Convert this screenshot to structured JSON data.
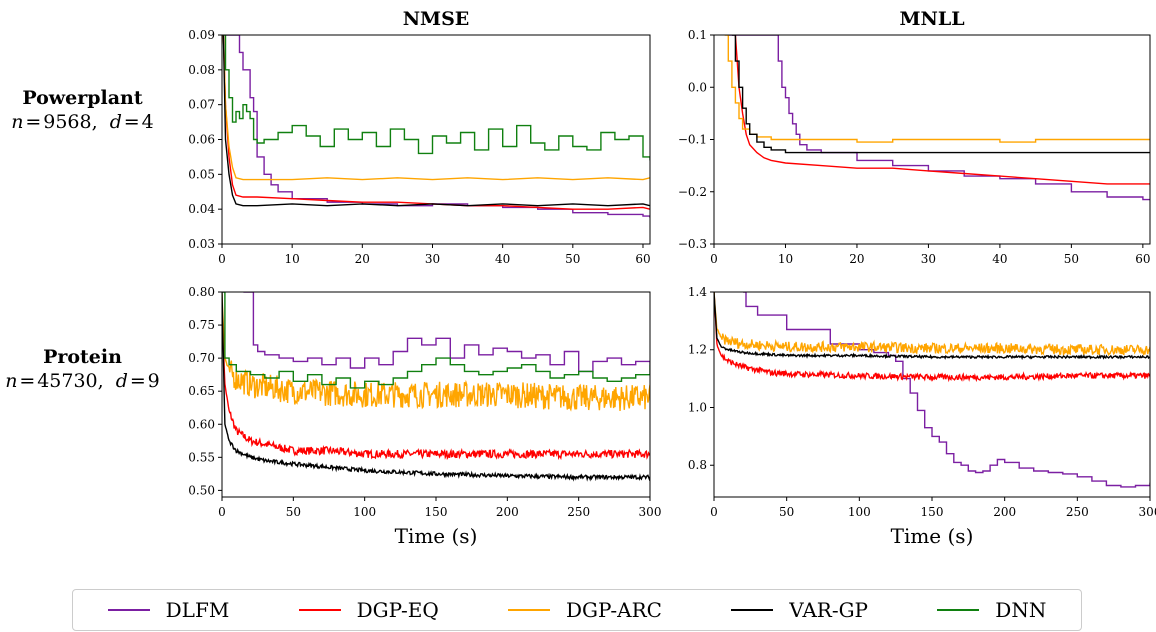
{
  "row_labels": [
    {
      "name": "Powerplant",
      "n": "9568",
      "d": "4"
    },
    {
      "name": "Protein",
      "n": "45730",
      "d": "9"
    }
  ],
  "legend": [
    {
      "label": "DLFM",
      "color": "#7b1fa2"
    },
    {
      "label": "DGP-EQ",
      "color": "#ff0000"
    },
    {
      "label": "DGP-ARC",
      "color": "#ffa500"
    },
    {
      "label": "VAR-GP",
      "color": "#000000"
    },
    {
      "label": "DNN",
      "color": "#108010"
    }
  ],
  "chart_data": [
    {
      "type": "line",
      "title": "NMSE",
      "xlabel": "",
      "xlim": [
        0,
        61
      ],
      "ylim": [
        0.03,
        0.09
      ],
      "xticks": [
        0,
        10,
        20,
        30,
        40,
        50,
        60
      ],
      "yticks": [
        0.03,
        0.04,
        0.05,
        0.06,
        0.07,
        0.08,
        0.09
      ],
      "ytick_labels": [
        "0.03",
        "0.04",
        "0.05",
        "0.06",
        "0.07",
        "0.08",
        "0.09"
      ],
      "series": [
        {
          "name": "DLFM",
          "color": "#7b1fa2",
          "x": [
            0.5,
            1.5,
            2.5,
            3,
            4,
            4.5,
            5,
            6,
            7,
            8,
            10,
            15,
            20,
            25,
            30,
            35,
            40,
            45,
            50,
            55,
            60,
            61
          ],
          "y": [
            0.09,
            0.09,
            0.085,
            0.08,
            0.072,
            0.068,
            0.055,
            0.05,
            0.047,
            0.045,
            0.043,
            0.042,
            0.0415,
            0.041,
            0.0415,
            0.041,
            0.0405,
            0.04,
            0.039,
            0.0385,
            0.038,
            0.0375
          ]
        },
        {
          "name": "DGP-EQ",
          "color": "#ff0000",
          "x": [
            0.2,
            0.5,
            1,
            1.5,
            2,
            3,
            5,
            10,
            15,
            20,
            25,
            30,
            35,
            40,
            45,
            50,
            55,
            60,
            61
          ],
          "y": [
            0.09,
            0.07,
            0.055,
            0.047,
            0.044,
            0.0435,
            0.0435,
            0.043,
            0.0425,
            0.042,
            0.042,
            0.0415,
            0.041,
            0.041,
            0.0405,
            0.04,
            0.04,
            0.0405,
            0.04
          ]
        },
        {
          "name": "DGP-ARC",
          "color": "#ffa500",
          "x": [
            0.2,
            0.5,
            1,
            1.5,
            2,
            3,
            5,
            10,
            15,
            20,
            25,
            30,
            35,
            40,
            45,
            50,
            55,
            60,
            61
          ],
          "y": [
            0.09,
            0.07,
            0.058,
            0.052,
            0.049,
            0.0485,
            0.0485,
            0.0485,
            0.049,
            0.0485,
            0.049,
            0.0485,
            0.049,
            0.0485,
            0.049,
            0.0485,
            0.049,
            0.0485,
            0.049
          ]
        },
        {
          "name": "VAR-GP",
          "color": "#000000",
          "x": [
            0.2,
            0.5,
            1,
            1.5,
            2,
            3,
            5,
            10,
            15,
            20,
            25,
            30,
            35,
            40,
            45,
            50,
            55,
            60,
            61
          ],
          "y": [
            0.09,
            0.06,
            0.05,
            0.044,
            0.0415,
            0.041,
            0.041,
            0.0415,
            0.041,
            0.0415,
            0.041,
            0.0415,
            0.041,
            0.0415,
            0.041,
            0.0415,
            0.041,
            0.0415,
            0.041
          ]
        },
        {
          "name": "DNN",
          "color": "#108010",
          "x": [
            0.2,
            0.5,
            1,
            1.5,
            2,
            2.5,
            3,
            3.5,
            4,
            4.5,
            5,
            6,
            8,
            10,
            12,
            14,
            16,
            18,
            20,
            22,
            24,
            26,
            28,
            30,
            32,
            34,
            36,
            38,
            40,
            42,
            44,
            46,
            48,
            50,
            52,
            54,
            56,
            58,
            60,
            61
          ],
          "y": [
            0.09,
            0.08,
            0.072,
            0.065,
            0.068,
            0.066,
            0.07,
            0.068,
            0.066,
            0.06,
            0.059,
            0.06,
            0.062,
            0.064,
            0.061,
            0.058,
            0.063,
            0.06,
            0.062,
            0.058,
            0.063,
            0.06,
            0.056,
            0.061,
            0.059,
            0.062,
            0.057,
            0.063,
            0.058,
            0.064,
            0.059,
            0.057,
            0.061,
            0.058,
            0.057,
            0.062,
            0.06,
            0.061,
            0.055,
            0.054
          ]
        }
      ]
    },
    {
      "type": "line",
      "title": "MNLL",
      "xlabel": "",
      "xlim": [
        0,
        61
      ],
      "ylim": [
        -0.3,
        0.1
      ],
      "xticks": [
        0,
        10,
        20,
        30,
        40,
        50,
        60
      ],
      "yticks": [
        -0.3,
        -0.2,
        -0.1,
        0.0,
        0.1
      ],
      "ytick_labels": [
        "−0.3",
        "−0.2",
        "−0.1",
        "0.0",
        "0.1"
      ],
      "series": [
        {
          "name": "DLFM",
          "color": "#7b1fa2",
          "x": [
            2,
            5,
            8,
            9,
            9.5,
            10,
            10.5,
            11,
            11.5,
            12,
            13,
            15,
            20,
            25,
            30,
            35,
            40,
            45,
            50,
            55,
            60,
            61
          ],
          "y": [
            0.1,
            0.1,
            0.1,
            0.05,
            0.0,
            -0.02,
            -0.05,
            -0.07,
            -0.09,
            -0.11,
            -0.12,
            -0.125,
            -0.14,
            -0.15,
            -0.16,
            -0.17,
            -0.175,
            -0.185,
            -0.2,
            -0.21,
            -0.215,
            -0.215
          ]
        },
        {
          "name": "DGP-EQ",
          "color": "#ff0000",
          "x": [
            3,
            3.5,
            4,
            4.5,
            5,
            6,
            7,
            8,
            10,
            15,
            20,
            25,
            30,
            35,
            40,
            45,
            50,
            55,
            60,
            61
          ],
          "y": [
            0.1,
            0.0,
            -0.05,
            -0.09,
            -0.11,
            -0.125,
            -0.135,
            -0.14,
            -0.145,
            -0.15,
            -0.155,
            -0.155,
            -0.16,
            -0.165,
            -0.17,
            -0.175,
            -0.18,
            -0.185,
            -0.185,
            -0.185
          ]
        },
        {
          "name": "DGP-ARC",
          "color": "#ffa500",
          "x": [
            1.5,
            2,
            2.5,
            3,
            3.5,
            4,
            5,
            6,
            8,
            10,
            15,
            20,
            25,
            30,
            35,
            40,
            45,
            50,
            55,
            60,
            61
          ],
          "y": [
            0.1,
            0.05,
            0.0,
            -0.03,
            -0.06,
            -0.08,
            -0.09,
            -0.095,
            -0.1,
            -0.1,
            -0.1,
            -0.105,
            -0.1,
            -0.1,
            -0.1,
            -0.105,
            -0.1,
            -0.1,
            -0.1,
            -0.1,
            -0.1
          ]
        },
        {
          "name": "VAR-GP",
          "color": "#000000",
          "x": [
            2.5,
            3,
            3.5,
            4,
            4.5,
            5,
            6,
            7,
            8,
            10,
            15,
            20,
            25,
            30,
            35,
            40,
            45,
            50,
            55,
            60,
            61
          ],
          "y": [
            0.1,
            0.05,
            0.0,
            -0.04,
            -0.07,
            -0.09,
            -0.105,
            -0.115,
            -0.12,
            -0.125,
            -0.125,
            -0.125,
            -0.125,
            -0.125,
            -0.125,
            -0.125,
            -0.125,
            -0.125,
            -0.125,
            -0.125,
            -0.125
          ]
        }
      ]
    },
    {
      "type": "line",
      "title": "",
      "xlabel": "Time (s)",
      "xlim": [
        0,
        300
      ],
      "ylim": [
        0.49,
        0.8
      ],
      "xticks": [
        0,
        50,
        100,
        150,
        200,
        250,
        300
      ],
      "yticks": [
        0.5,
        0.55,
        0.6,
        0.65,
        0.7,
        0.75,
        0.8
      ],
      "ytick_labels": [
        "0.50",
        "0.55",
        "0.60",
        "0.65",
        "0.70",
        "0.75",
        "0.80"
      ],
      "series": [
        {
          "name": "DLFM",
          "color": "#7b1fa2",
          "x": [
            15,
            20,
            22,
            25,
            30,
            40,
            50,
            60,
            70,
            80,
            90,
            100,
            110,
            120,
            130,
            140,
            150,
            160,
            170,
            180,
            190,
            200,
            210,
            220,
            230,
            240,
            250,
            260,
            270,
            280,
            290,
            300
          ],
          "y": [
            0.8,
            0.8,
            0.72,
            0.71,
            0.705,
            0.7,
            0.695,
            0.7,
            0.69,
            0.7,
            0.685,
            0.7,
            0.69,
            0.71,
            0.73,
            0.72,
            0.73,
            0.7,
            0.72,
            0.705,
            0.715,
            0.71,
            0.7,
            0.705,
            0.69,
            0.71,
            0.68,
            0.695,
            0.7,
            0.69,
            0.695,
            0.69
          ]
        },
        {
          "name": "DGP-EQ",
          "color": "#ff0000",
          "noise": 0.006,
          "x": [
            0,
            2,
            5,
            10,
            20,
            30,
            50,
            75,
            100,
            150,
            200,
            250,
            300
          ],
          "y": [
            0.78,
            0.66,
            0.62,
            0.59,
            0.575,
            0.57,
            0.56,
            0.56,
            0.555,
            0.555,
            0.555,
            0.555,
            0.555
          ]
        },
        {
          "name": "DGP-ARC",
          "color": "#ffa500",
          "noise": 0.02,
          "x": [
            0,
            2,
            5,
            10,
            20,
            50,
            100,
            150,
            200,
            250,
            300
          ],
          "y": [
            0.8,
            0.7,
            0.68,
            0.67,
            0.66,
            0.65,
            0.645,
            0.645,
            0.645,
            0.64,
            0.64
          ]
        },
        {
          "name": "VAR-GP",
          "color": "#000000",
          "noise": 0.003,
          "x": [
            0,
            2,
            5,
            10,
            20,
            30,
            50,
            75,
            100,
            150,
            200,
            250,
            300
          ],
          "y": [
            0.8,
            0.6,
            0.575,
            0.56,
            0.55,
            0.545,
            0.54,
            0.535,
            0.53,
            0.525,
            0.522,
            0.52,
            0.52
          ]
        },
        {
          "name": "DNN",
          "color": "#108010",
          "x": [
            0,
            2,
            5,
            10,
            20,
            30,
            40,
            50,
            60,
            70,
            80,
            90,
            100,
            110,
            120,
            130,
            140,
            150,
            160,
            170,
            180,
            190,
            200,
            210,
            220,
            230,
            240,
            250,
            260,
            270,
            280,
            290,
            300
          ],
          "y": [
            0.8,
            0.7,
            0.69,
            0.68,
            0.675,
            0.67,
            0.68,
            0.665,
            0.675,
            0.66,
            0.67,
            0.655,
            0.665,
            0.66,
            0.67,
            0.68,
            0.69,
            0.7,
            0.69,
            0.68,
            0.675,
            0.68,
            0.685,
            0.69,
            0.68,
            0.67,
            0.675,
            0.68,
            0.67,
            0.665,
            0.67,
            0.675,
            0.69
          ]
        }
      ]
    },
    {
      "type": "line",
      "title": "",
      "xlabel": "Time (s)",
      "xlim": [
        0,
        300
      ],
      "ylim": [
        0.69,
        1.4
      ],
      "xticks": [
        0,
        50,
        100,
        150,
        200,
        250,
        300
      ],
      "yticks": [
        0.8,
        1.0,
        1.2,
        1.4
      ],
      "ytick_labels": [
        "0.8",
        "1.0",
        "1.2",
        "1.4"
      ],
      "series": [
        {
          "name": "DLFM",
          "color": "#7b1fa2",
          "x": [
            20,
            22,
            30,
            50,
            80,
            100,
            110,
            120,
            125,
            130,
            135,
            140,
            145,
            150,
            155,
            160,
            165,
            170,
            175,
            180,
            185,
            190,
            195,
            200,
            210,
            220,
            230,
            240,
            250,
            260,
            270,
            280,
            290,
            300
          ],
          "y": [
            1.4,
            1.35,
            1.32,
            1.27,
            1.22,
            1.2,
            1.19,
            1.18,
            1.16,
            1.1,
            1.05,
            0.99,
            0.93,
            0.9,
            0.88,
            0.84,
            0.81,
            0.8,
            0.78,
            0.775,
            0.78,
            0.8,
            0.82,
            0.81,
            0.79,
            0.78,
            0.775,
            0.77,
            0.76,
            0.745,
            0.73,
            0.725,
            0.73,
            0.74
          ]
        },
        {
          "name": "DGP-EQ",
          "color": "#ff0000",
          "noise": 0.01,
          "x": [
            0,
            2,
            5,
            10,
            20,
            40,
            60,
            100,
            150,
            200,
            250,
            300
          ],
          "y": [
            1.4,
            1.22,
            1.18,
            1.16,
            1.14,
            1.12,
            1.115,
            1.11,
            1.105,
            1.105,
            1.11,
            1.11
          ]
        },
        {
          "name": "DGP-ARC",
          "color": "#ffa500",
          "noise": 0.018,
          "x": [
            0,
            2,
            5,
            10,
            20,
            50,
            100,
            150,
            200,
            250,
            300
          ],
          "y": [
            1.4,
            1.27,
            1.24,
            1.23,
            1.22,
            1.21,
            1.21,
            1.205,
            1.205,
            1.2,
            1.2
          ]
        },
        {
          "name": "VAR-GP",
          "color": "#000000",
          "noise": 0.004,
          "x": [
            0,
            2,
            5,
            10,
            20,
            50,
            100,
            150,
            200,
            250,
            300
          ],
          "y": [
            1.4,
            1.24,
            1.21,
            1.2,
            1.19,
            1.18,
            1.18,
            1.175,
            1.175,
            1.175,
            1.175
          ]
        }
      ]
    }
  ]
}
